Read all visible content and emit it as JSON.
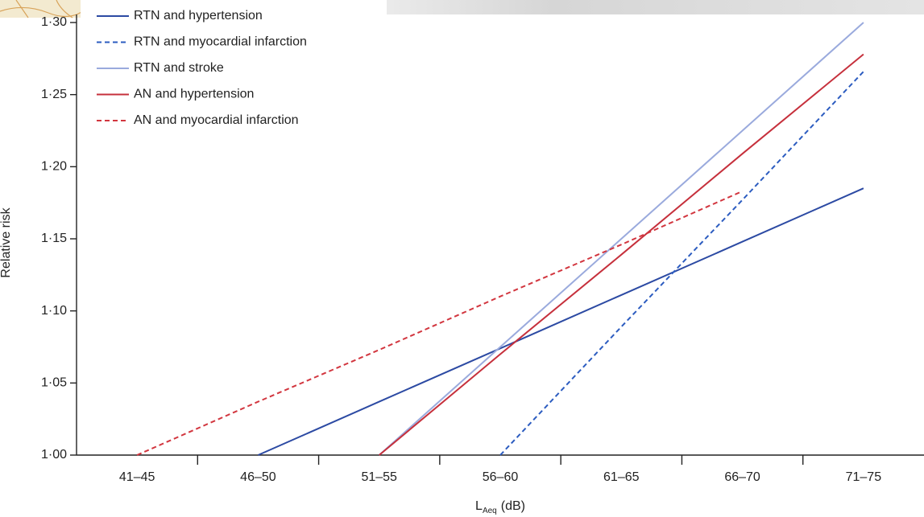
{
  "chart_data": {
    "type": "line",
    "y_label": "Relative risk",
    "x_label_base": "L",
    "x_label_subscript": "Aeq",
    "x_label_unit": "(dB)",
    "categories": [
      "41–45",
      "46–50",
      "51–55",
      "56–60",
      "61–65",
      "66–70",
      "71–75"
    ],
    "ylim": [
      1.0,
      1.3
    ],
    "yticks": [
      {
        "value": 1.0,
        "label": "1·00"
      },
      {
        "value": 1.05,
        "label": "1·05"
      },
      {
        "value": 1.1,
        "label": "1·10"
      },
      {
        "value": 1.15,
        "label": "1·15"
      },
      {
        "value": 1.2,
        "label": "1·20"
      },
      {
        "value": 1.25,
        "label": "1·25"
      },
      {
        "value": 1.3,
        "label": "1·30"
      }
    ],
    "legend": "upper left",
    "series": [
      {
        "name": "RTN and hypertension",
        "color": "#2c4aa3",
        "dashed": false,
        "values": [
          null,
          1.0,
          1.037,
          1.074,
          1.111,
          1.148,
          1.185
        ]
      },
      {
        "name": "RTN and myocardial infarction",
        "color": "#2c5cc0",
        "dashed": true,
        "values": [
          null,
          null,
          null,
          1.0,
          1.089,
          1.177,
          1.266
        ]
      },
      {
        "name": "RTN and stroke",
        "color": "#9aaadd",
        "dashed": false,
        "values": [
          null,
          null,
          1.0,
          1.075,
          1.15,
          1.225,
          1.3
        ]
      },
      {
        "name": "AN and hypertension",
        "color": "#c6303c",
        "dashed": false,
        "values": [
          null,
          null,
          1.0,
          1.07,
          1.139,
          1.209,
          1.278
        ]
      },
      {
        "name": "AN and myocardial infarction",
        "color": "#d2363f",
        "dashed": true,
        "values": [
          1.0,
          1.037,
          1.073,
          1.11,
          1.146,
          1.183,
          null
        ]
      }
    ]
  }
}
